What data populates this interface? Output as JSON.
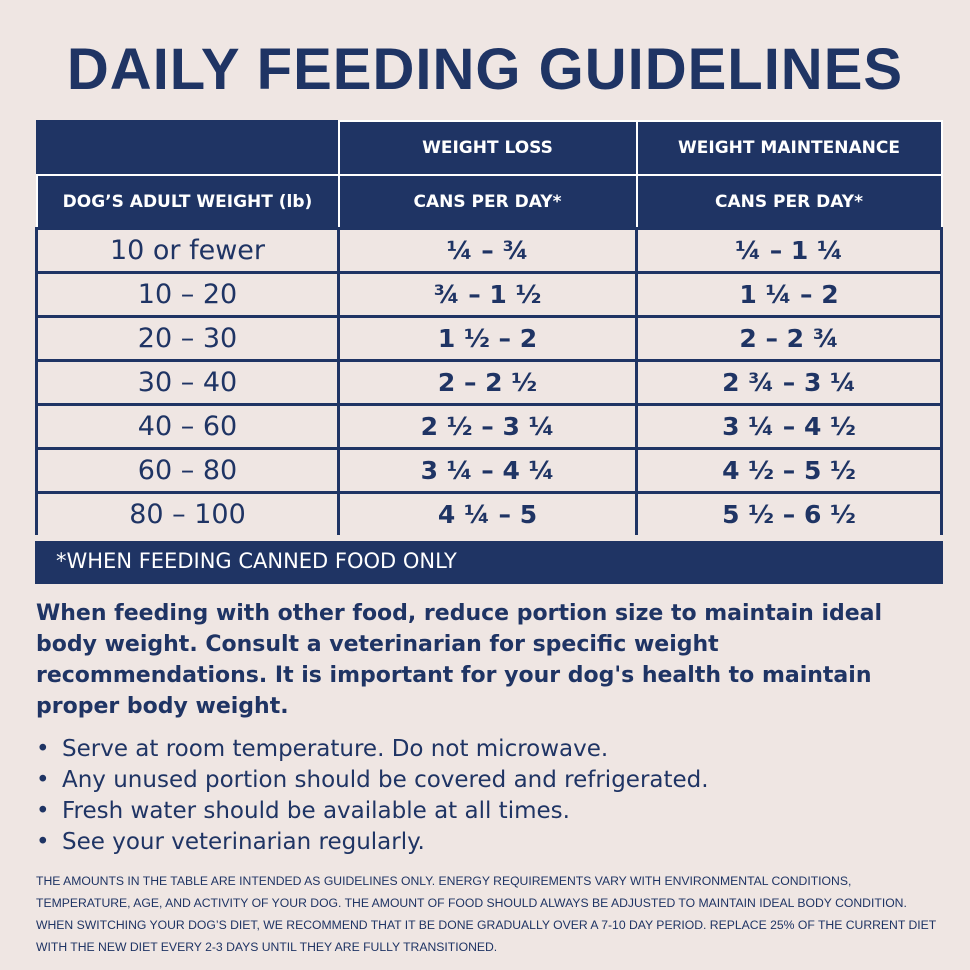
{
  "title": "DAILY FEEDING GUIDELINES",
  "table": {
    "header_top": [
      "WEIGHT LOSS",
      "WEIGHT MAINTENANCE"
    ],
    "header": [
      "DOG’S ADULT WEIGHT (lb)",
      "CANS PER DAY*",
      "CANS PER DAY*"
    ],
    "rows": [
      [
        "10 or fewer",
        "¼ – ¾",
        "¼ – 1 ¼"
      ],
      [
        "10 – 20",
        "¾ – 1 ½",
        "1 ¼ – 2"
      ],
      [
        "20 – 30",
        "1 ½ – 2",
        "2 – 2 ¾"
      ],
      [
        "30 – 40",
        "2 – 2 ½",
        "2 ¾ – 3 ¼"
      ],
      [
        "40 – 60",
        "2 ½ – 3 ¼",
        "3 ¼ – 4 ½"
      ],
      [
        "60 – 80",
        "3 ¼ – 4 ¼",
        "4 ½ – 5 ½"
      ],
      [
        "80 – 100",
        "4 ¼ – 5",
        "5 ½ – 6 ½"
      ]
    ],
    "footnote": "*WHEN FEEDING CANNED FOOD ONLY"
  },
  "intro": "When feeding with other food, reduce portion size to maintain ideal body weight. Consult a veterinarian for specific weight recommendations. It is important for your dog's health to maintain proper body weight.",
  "bullets": [
    "Serve at room temperature. Do not microwave.",
    "Any unused portion should be covered and refrigerated.",
    "Fresh water should be available at all times.",
    "See your veterinarian regularly."
  ],
  "disclaimer": "The amounts in the table are intended as guidelines only. Energy requirements vary with environmental conditions, temperature, age, and activity of your dog. The amount of food should always be adjusted to maintain ideal body condition. When switching your dog’s diet, we recommend that it be done gradually over a 7-10 day period. Replace 25% of the current diet with the new diet every 2-3 days until they are fully transitioned."
}
